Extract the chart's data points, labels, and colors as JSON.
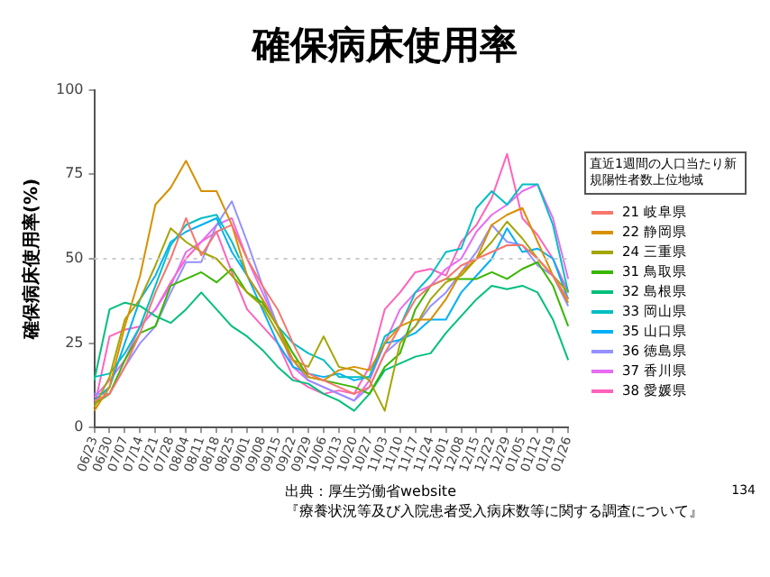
{
  "chart_data": {
    "type": "line",
    "title": "確保病床使用率",
    "ylabel": "確保病床使用率(%)",
    "legend_title": "直近1週間の人口当たり新規陽性者数上位地域",
    "legend": "right",
    "grid": false,
    "marker": "none",
    "line_style": "solid",
    "categories": [
      "06/23",
      "06/30",
      "07/07",
      "07/14",
      "07/21",
      "07/28",
      "08/04",
      "08/11",
      "08/18",
      "08/25",
      "09/01",
      "09/08",
      "09/15",
      "09/22",
      "09/29",
      "10/06",
      "10/13",
      "10/20",
      "10/27",
      "11/03",
      "11/10",
      "11/17",
      "11/24",
      "12/01",
      "12/08",
      "12/15",
      "12/22",
      "12/29",
      "01/05",
      "01/12",
      "01/19",
      "01/26"
    ],
    "ylim": [
      0,
      100
    ],
    "yticks": [
      0,
      25,
      50,
      75,
      100
    ],
    "ref_lines": [
      {
        "axis": "y",
        "value": 50,
        "color": "#cccccc",
        "line_style": "dotted"
      }
    ],
    "series": [
      {
        "name": "21 岐阜県",
        "color": "#f8766d",
        "values": [
          8,
          10,
          18,
          28,
          40,
          50,
          62,
          51,
          58,
          60,
          50,
          42,
          35,
          25,
          16,
          14,
          12,
          10,
          12,
          22,
          30,
          38,
          42,
          44,
          48,
          50,
          52,
          54,
          54,
          50,
          45,
          38
        ]
      },
      {
        "name": "22 静岡県",
        "color": "#d89000",
        "values": [
          5,
          12,
          30,
          45,
          66,
          71,
          79,
          70,
          70,
          60,
          45,
          38,
          30,
          20,
          15,
          14,
          17,
          18,
          17,
          25,
          30,
          32,
          32,
          38,
          46,
          50,
          60,
          63,
          65,
          55,
          45,
          37
        ]
      },
      {
        "name": "24 三重県",
        "color": "#a3a500",
        "values": [
          6,
          15,
          32,
          38,
          48,
          59,
          55,
          52,
          50,
          45,
          40,
          36,
          28,
          20,
          18,
          27,
          18,
          17,
          14,
          5,
          25,
          30,
          38,
          43,
          45,
          50,
          55,
          61,
          56,
          50,
          45,
          40
        ]
      },
      {
        "name": "31 鳥取県",
        "color": "#39b600",
        "values": [
          7,
          10,
          20,
          28,
          30,
          42,
          44,
          46,
          43,
          47,
          40,
          37,
          30,
          22,
          15,
          14,
          13,
          12,
          10,
          18,
          22,
          35,
          42,
          44,
          44,
          44,
          46,
          44,
          47,
          49,
          42,
          30
        ]
      },
      {
        "name": "32 島根県",
        "color": "#00bf7d",
        "values": [
          14,
          35,
          37,
          36,
          33,
          31,
          35,
          40,
          35,
          30,
          27,
          23,
          18,
          14,
          13,
          10,
          8,
          5,
          10,
          17,
          19,
          21,
          22,
          28,
          33,
          38,
          42,
          41,
          42,
          40,
          32,
          20
        ]
      },
      {
        "name": "33 岡山県",
        "color": "#00bfc4",
        "values": [
          15,
          16,
          22,
          30,
          42,
          54,
          60,
          62,
          63,
          55,
          45,
          38,
          30,
          25,
          22,
          20,
          15,
          15,
          15,
          27,
          30,
          40,
          45,
          52,
          53,
          65,
          70,
          66,
          72,
          72,
          60,
          40
        ]
      },
      {
        "name": "35 山口県",
        "color": "#00b0f6",
        "values": [
          8,
          12,
          25,
          38,
          45,
          55,
          58,
          60,
          62,
          52,
          45,
          35,
          25,
          18,
          16,
          15,
          16,
          14,
          15,
          25,
          26,
          28,
          32,
          32,
          40,
          45,
          50,
          59,
          52,
          53,
          50,
          38
        ]
      },
      {
        "name": "36 徳島県",
        "color": "#9590ff",
        "values": [
          10,
          10,
          18,
          25,
          30,
          40,
          49,
          49,
          60,
          67,
          55,
          42,
          30,
          20,
          14,
          12,
          10,
          8,
          12,
          22,
          26,
          30,
          36,
          40,
          46,
          52,
          60,
          55,
          54,
          48,
          45,
          36
        ]
      },
      {
        "name": "37 香川県",
        "color": "#e76bf3",
        "values": [
          9,
          14,
          20,
          30,
          35,
          42,
          52,
          55,
          60,
          62,
          50,
          40,
          30,
          18,
          14,
          12,
          10,
          8,
          14,
          25,
          35,
          40,
          42,
          47,
          50,
          58,
          63,
          66,
          70,
          72,
          62,
          44
        ]
      },
      {
        "name": "38 愛媛県",
        "color": "#ff62bc",
        "values": [
          6,
          27,
          29,
          30,
          35,
          43,
          50,
          55,
          58,
          46,
          35,
          30,
          25,
          15,
          12,
          10,
          11,
          10,
          18,
          35,
          40,
          46,
          47,
          45,
          55,
          60,
          68,
          81,
          62,
          57,
          50,
          40
        ]
      }
    ],
    "annotations": [
      "出典：厚生労働省website",
      "『療養状況等及び入院患者受入病床数等に関する調査について』",
      "134"
    ]
  }
}
